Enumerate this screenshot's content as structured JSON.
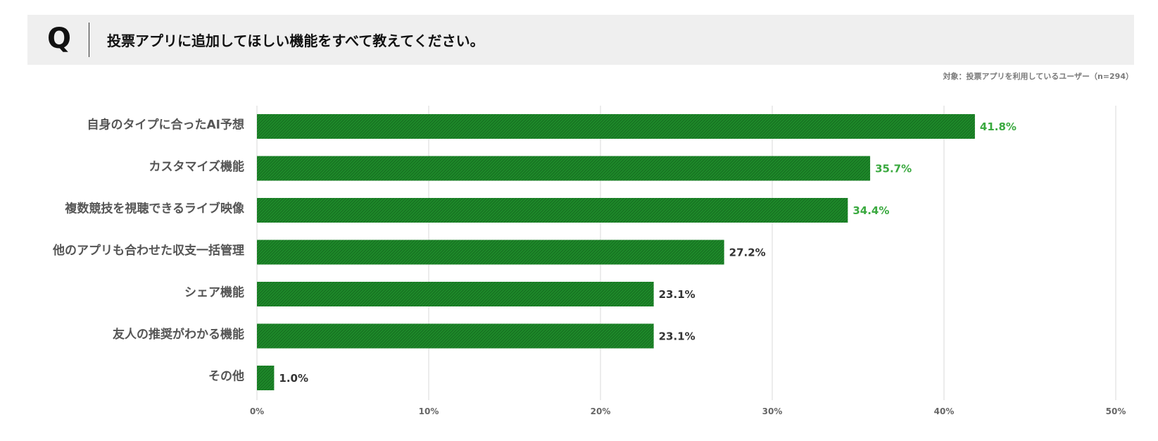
{
  "question": {
    "marker": "Q",
    "text": "投票アプリに追加してほしい機能をすべて教えてください。"
  },
  "target_note": "対象：投票アプリを利用しているユーザー（n=294）",
  "colors": {
    "bar": "#1e8a2a",
    "bar_stripe": "#156b1f",
    "highlight_label": "#3aa93f",
    "normal_label": "#333333",
    "category_label": "#555555",
    "tick_label": "#666666",
    "grid": "#d9d9d9",
    "banner_bg": "#efefef"
  },
  "chart_data": {
    "type": "bar",
    "orientation": "horizontal",
    "categories": [
      "自身のタイプに合ったAI予想",
      "カスタマイズ機能",
      "複数競技を視聴できるライブ映像",
      "他のアプリも合わせた収支一括管理",
      "シェア機能",
      "友人の推奨がわかる機能",
      "その他"
    ],
    "values": [
      41.8,
      35.7,
      34.4,
      27.2,
      23.1,
      23.1,
      1.0
    ],
    "value_labels": [
      "41.8%",
      "35.7%",
      "34.4%",
      "27.2%",
      "23.1%",
      "23.1%",
      "1.0%"
    ],
    "highlighted": [
      true,
      true,
      true,
      false,
      false,
      false,
      false
    ],
    "xlim": [
      0,
      50
    ],
    "xticks": [
      0,
      10,
      20,
      30,
      40,
      50
    ],
    "xtick_labels": [
      "0%",
      "10%",
      "20%",
      "30%",
      "40%",
      "50%"
    ],
    "grid": true,
    "unit": "%"
  }
}
